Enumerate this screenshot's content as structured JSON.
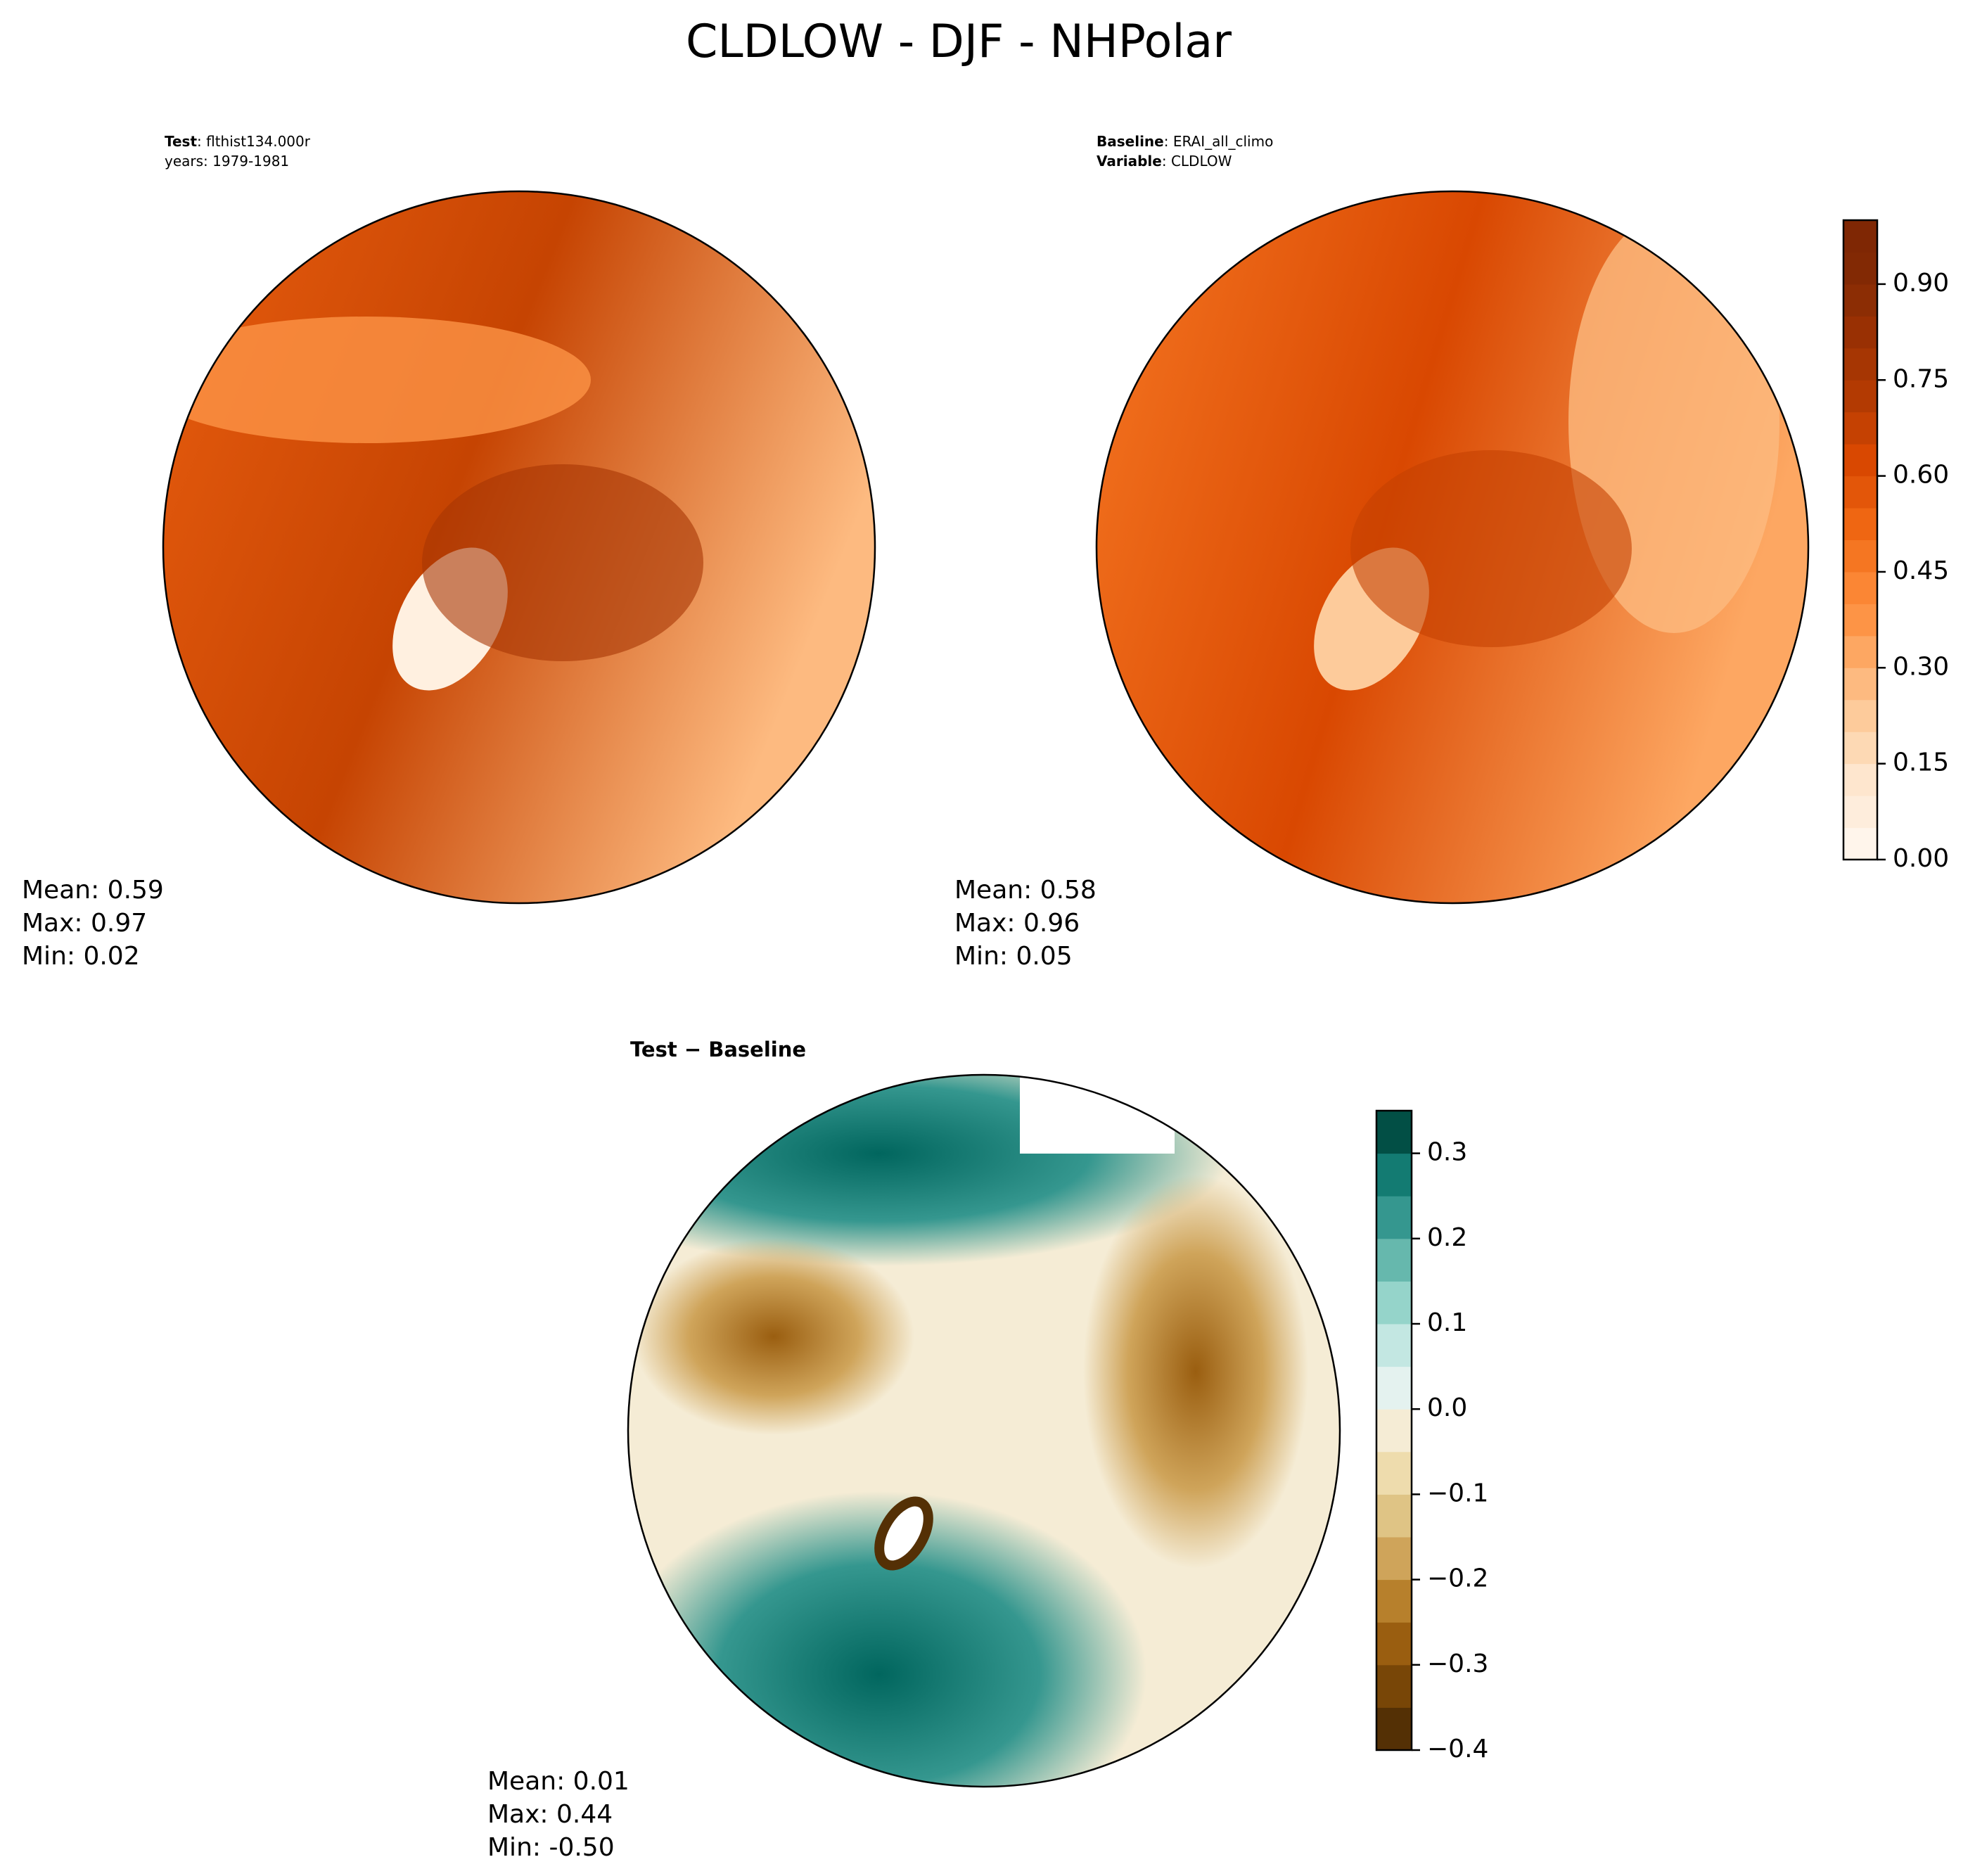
{
  "title": "CLDLOW - DJF - NHPolar",
  "panels": [
    {
      "header": [
        {
          "key": "Test",
          "text": ": flthist134.000r"
        },
        {
          "key": "",
          "text": "years: 1979-1981"
        }
      ],
      "stats": [
        "Mean:  0.59",
        "Max:  0.97",
        "Min:  0.02"
      ]
    },
    {
      "header": [
        {
          "key": "Baseline",
          "text": ": ERAI_all_climo"
        },
        {
          "key": "Variable",
          "text": ": CLDLOW"
        }
      ],
      "stats": [
        "Mean:  0.58",
        "Max:  0.96",
        "Min:  0.05"
      ]
    },
    {
      "header": [
        {
          "key": "Test − Baseline",
          "text": ""
        }
      ],
      "stats": [
        "Mean:  0.01",
        "Max:  0.44",
        "Min: -0.50"
      ]
    }
  ],
  "colorbars": [
    {
      "lim": [
        0,
        1
      ],
      "ticks": [
        {
          "value": 0,
          "label": "0.00"
        },
        0.15,
        {
          "value": 0.3,
          "label": "0.30"
        },
        0.45,
        {
          "value": 0.6,
          "label": "0.60"
        },
        0.75,
        {
          "value": 0.9,
          "label": "0.90"
        }
      ],
      "colors": [
        "#fff5eb",
        "#feeddc",
        "#fee6ce",
        "#fdd9b4",
        "#fdcb9b",
        "#fdba80",
        "#fda762",
        "#fd9446",
        "#fb8634",
        "#f57622",
        "#ef6612",
        "#e35609",
        "#d94801",
        "#c54102",
        "#b33a02",
        "#a63603",
        "#993003",
        "#8c2d04",
        "#822904",
        "#7f2704"
      ]
    },
    {
      "lim": [
        -0.4,
        0.35
      ],
      "ticks": [
        {
          "value": -0.4,
          "label": "−0.4"
        },
        {
          "value": -0.3,
          "label": "−0.3"
        },
        {
          "value": -0.2,
          "label": "−0.2"
        },
        {
          "value": -0.1,
          "label": "−0.1"
        },
        {
          "value": 0,
          "label": "0.0"
        },
        0.1,
        0.2,
        0.3
      ],
      "colors": [
        "#543005",
        "#784607",
        "#9a5e10",
        "#b7802c",
        "#cfa45a",
        "#dfc485",
        "#eedcad",
        "#f5ecd5",
        "#e4f2ef",
        "#c3e7e2",
        "#95d4ca",
        "#66b8ad",
        "#35978f",
        "#137b72",
        "#024f45"
      ]
    }
  ]
}
